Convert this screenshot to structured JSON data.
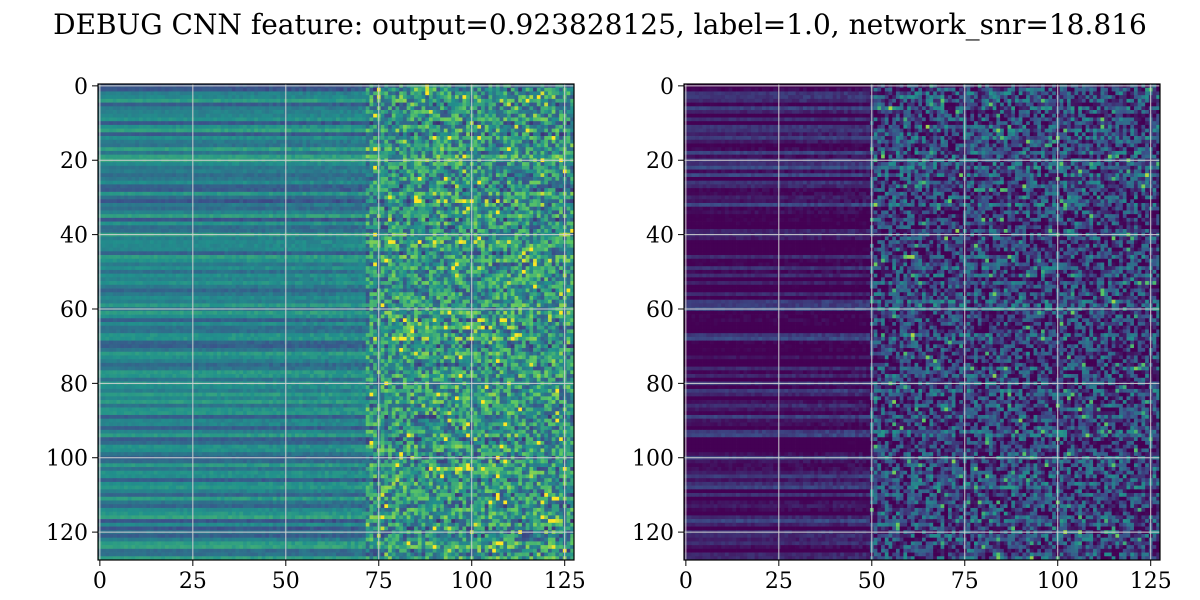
{
  "figure": {
    "title": "DEBUG CNN feature: output=0.923828125, label=1.0, network_snr=18.816"
  },
  "chart_data": [
    {
      "type": "heatmap",
      "title": "",
      "xlabel": "",
      "ylabel": "",
      "rows": 128,
      "cols": 128,
      "xlim": [
        -0.5,
        127.5
      ],
      "ylim": [
        127.5,
        -0.5
      ],
      "x_ticks": [
        0,
        25,
        50,
        75,
        100,
        125
      ],
      "y_ticks": [
        0,
        20,
        40,
        60,
        80,
        100,
        120
      ],
      "grid": true,
      "colormap": "viridis",
      "colormap_stops": [
        "#440154",
        "#3b528b",
        "#21918c",
        "#5ec962",
        "#fde725"
      ],
      "description_of_values": "rows are horizontal bands; columns 0-70 smooth mid-range teal/green, columns 75-127 noisy with bright yellow-green speckles",
      "value_profile": {
        "smooth_region_cols": [
          0,
          72
        ],
        "smooth_base": 0.42,
        "noisy_region_cols": [
          72,
          127
        ],
        "noisy_base": 0.5,
        "bright_rows": [
          31,
          42,
          63,
          65,
          68,
          103
        ],
        "bright_cols": [
          78,
          112
        ]
      }
    },
    {
      "type": "heatmap",
      "title": "",
      "xlabel": "",
      "ylabel": "",
      "rows": 128,
      "cols": 128,
      "xlim": [
        -0.5,
        127.5
      ],
      "ylim": [
        127.5,
        -0.5
      ],
      "x_ticks": [
        0,
        25,
        50,
        75,
        100,
        125
      ],
      "y_ticks": [
        0,
        20,
        40,
        60,
        80,
        100,
        120
      ],
      "grid": true,
      "colormap": "viridis",
      "colormap_stops": [
        "#440154",
        "#3b528b",
        "#21918c",
        "#5ec962",
        "#fde725"
      ],
      "description_of_values": "mostly dark purple; columns 0-50 smooth low values, columns 50-127 noisy blue/teal speckles with a few bright points around column 80",
      "value_profile": {
        "smooth_region_cols": [
          0,
          50
        ],
        "smooth_base": 0.08,
        "noisy_region_cols": [
          50,
          127
        ],
        "noisy_base": 0.2,
        "bright_rows": [
          28,
          36,
          43,
          72,
          95,
          115,
          122
        ],
        "bright_cols": [
          78,
          86
        ]
      }
    }
  ]
}
